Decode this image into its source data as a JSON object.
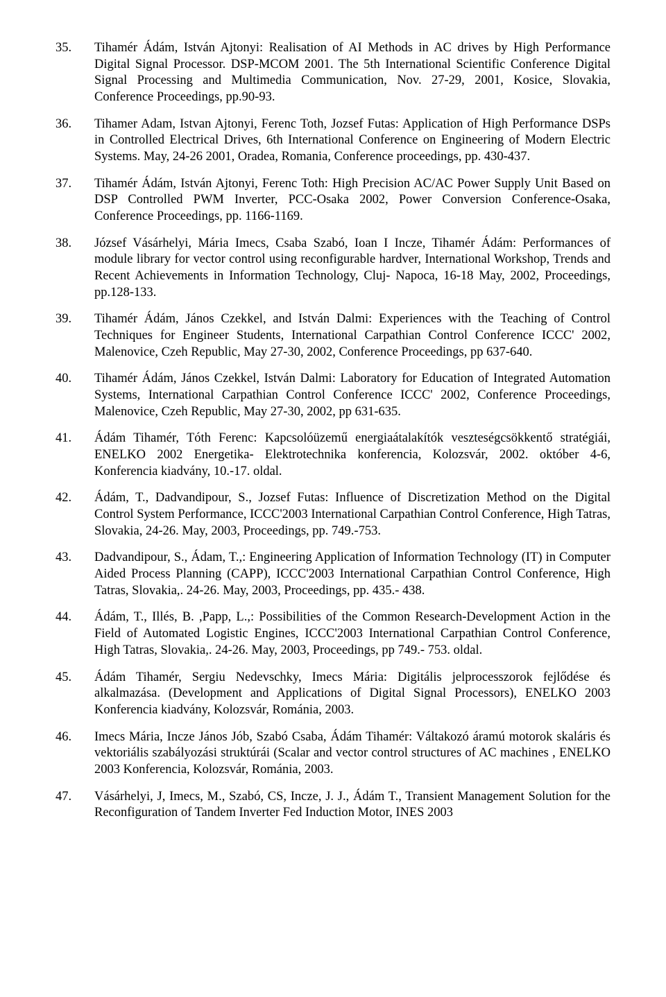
{
  "references": [
    {
      "num": "35.",
      "text": "Tihamér Ádám, István Ajtonyi: Realisation of AI Methods in AC drives by High Performance Digital Signal Processor. DSP-MCOM 2001. The 5th International Scientific Conference Digital Signal Processing and Multimedia Communication, Nov. 27-29, 2001, Kosice, Slovakia, Conference Proceedings, pp.90-93."
    },
    {
      "num": "36.",
      "text": "Tihamer Adam, Istvan Ajtonyi, Ferenc Toth, Jozsef Futas: Application of High Performance DSPs in Controlled Electrical Drives, 6th International Conference on Engineering of Modern Electric Systems. May, 24-26 2001, Oradea, Romania, Conference proceedings, pp. 430-437."
    },
    {
      "num": "37.",
      "text": "Tihamér Ádám, István Ajtonyi, Ferenc Toth: High Precision AC/AC Power Supply Unit Based on DSP Controlled PWM Inverter, PCC-Osaka 2002, Power Conversion Conference-Osaka, Conference Proceedings, pp. 1166-1169."
    },
    {
      "num": "38.",
      "text": "József Vásárhelyi, Mária Imecs, Csaba Szabó, Ioan I Incze, Tihamér Ádám: Performances of module library for vector control using reconfigurable hardver, International Workshop, Trends and Recent Achievements in Information Technology, Cluj- Napoca, 16-18 May, 2002, Proceedings, pp.128-133."
    },
    {
      "num": "39.",
      "text": "Tihamér Ádám, János Czekkel, and István Dalmi: Experiences with the Teaching of Control Techniques for Engineer Students, International Carpathian Control Conference ICCC' 2002, Malenovice, Czeh Republic, May 27-30, 2002, Conference Proceedings, pp 637-640."
    },
    {
      "num": "40.",
      "text": "Tihamér Ádám, János Czekkel, István Dalmi: Laboratory for Education of Integrated Automation Systems, International Carpathian Control Conference ICCC' 2002, Conference Proceedings, Malenovice, Czeh Republic, May 27-30, 2002, pp 631-635."
    },
    {
      "num": "41.",
      "text": "Ádám Tihamér, Tóth Ferenc: Kapcsolóüzemű energiaátalakítók veszteségcsökkentő stratégiái, ENELKO 2002 Energetika- Elektrotechnika konferencia, Kolozsvár, 2002. október 4-6, Konferencia kiadvány, 10.-17. oldal."
    },
    {
      "num": "42.",
      "text": "Ádám, T., Dadvandipour, S., Jozsef Futas: Influence of Discretization Method on the Digital Control System Performance, ICCC'2003 International Carpathian Control Conference, High Tatras, Slovakia, 24-26. May, 2003, Proceedings, pp. 749.-753."
    },
    {
      "num": "43.",
      "text": "Dadvandipour, S., Ádam, T.,: Engineering Application of Information Technology (IT) in Computer Aided Process Planning (CAPP), ICCC'2003 International Carpathian Control Conference, High Tatras, Slovakia,. 24-26. May, 2003, Proceedings, pp. 435.- 438."
    },
    {
      "num": "44.",
      "text": "Ádám, T., Illés, B. ,Papp, L.,: Possibilities of the Common Research-Development Action in the Field of Automated Logistic Engines, ICCC'2003 International Carpathian Control Conference, High Tatras, Slovakia,. 24-26. May, 2003, Proceedings, pp 749.- 753. oldal."
    },
    {
      "num": "45.",
      "text": "Ádám Tihamér, Sergiu Nedevschky, Imecs Mária: Digitális jelprocesszorok fejlődése és alkalmazása. (Development and Applications of Digital Signal Processors), ENELKO 2003 Konferencia kiadvány, Kolozsvár, Románia, 2003."
    },
    {
      "num": "46.",
      "text": "Imecs Mária, Incze János Jób, Szabó Csaba, Ádám Tihamér: Váltakozó áramú motorok skaláris és vektoriális szabályozási struktúrái (Scalar and vector control structures of AC machines , ENELKO 2003 Konferencia, Kolozsvár, Románia, 2003."
    },
    {
      "num": "47.",
      "text": "Vásárhelyi, J, Imecs, M., Szabó, CS, Incze, J. J., Ádám T., Transient Management Solution for the Reconfiguration of Tandem Inverter Fed Induction Motor, INES 2003"
    }
  ]
}
